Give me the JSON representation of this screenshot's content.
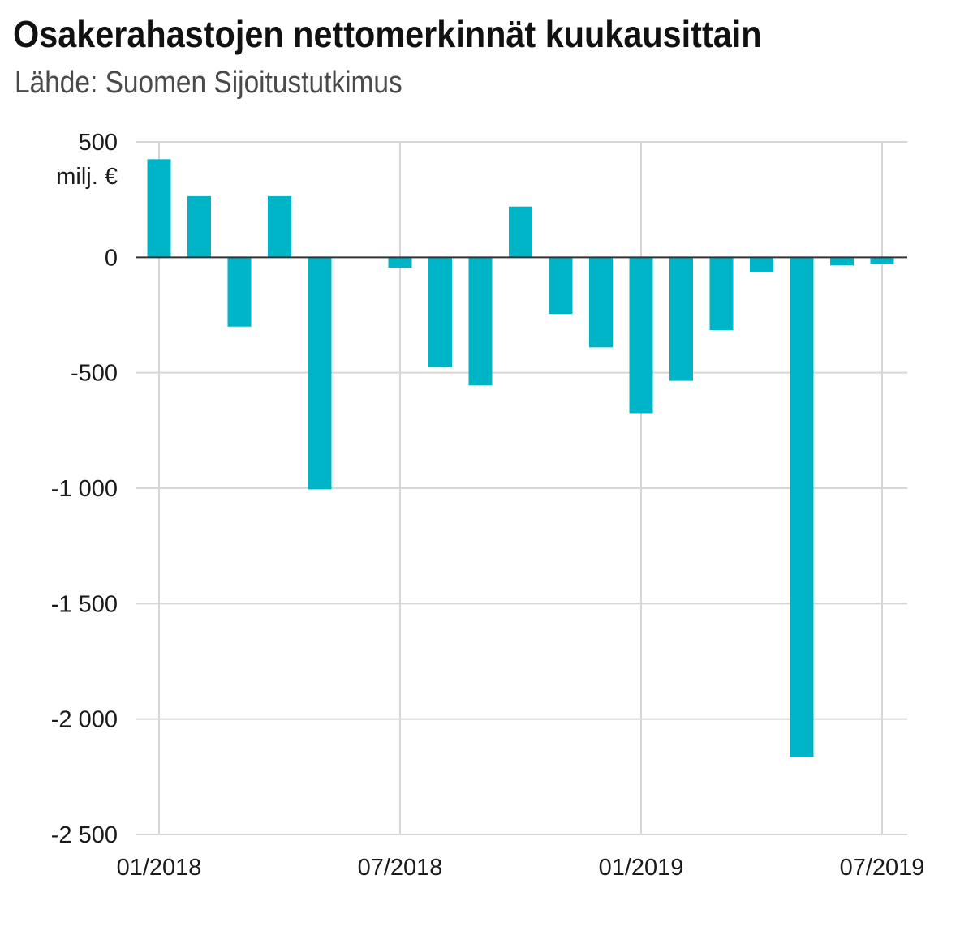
{
  "chart_data": {
    "type": "bar",
    "title": "Osakerahastojen nettomerkinnät kuukausittain",
    "subtitle": "Lähde: Suomen Sijoitustutkimus",
    "ylabel": "milj. €",
    "xlabel": "",
    "ylim": [
      -2500,
      500
    ],
    "yticks": [
      500,
      0,
      -500,
      -1000,
      -1500,
      -2000,
      -2500
    ],
    "ytick_labels": [
      "500",
      "0",
      "-500",
      "-1 000",
      "-1 500",
      "-2 000",
      "-2 500"
    ],
    "xtick_labels": [
      "01/2018",
      "07/2018",
      "01/2019",
      "07/2019"
    ],
    "xtick_positions": [
      0,
      6,
      12,
      18
    ],
    "grid": true,
    "bar_color": "#00b4c8",
    "categories": [
      "2018-01",
      "2018-02",
      "2018-03",
      "2018-04",
      "2018-05",
      "2018-06",
      "2018-07",
      "2018-08",
      "2018-09",
      "2018-10",
      "2018-11",
      "2018-12",
      "2019-01",
      "2019-02",
      "2019-03",
      "2019-04",
      "2019-05",
      "2019-06",
      "2019-07"
    ],
    "values": [
      425,
      265,
      -300,
      265,
      -1005,
      0,
      -45,
      -475,
      -555,
      220,
      -245,
      -390,
      -675,
      -535,
      -315,
      -65,
      -2165,
      -35,
      -30
    ]
  }
}
